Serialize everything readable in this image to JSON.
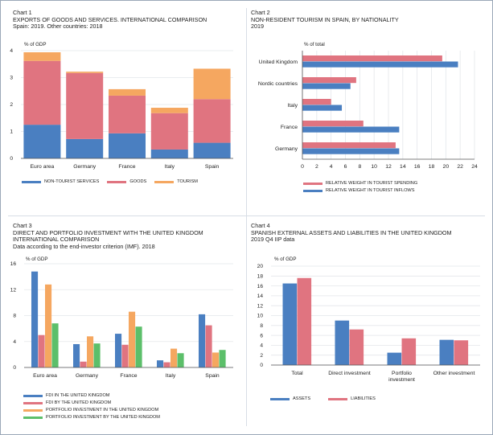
{
  "colors": {
    "blue": "#4a7fc1",
    "red": "#e07480",
    "orange": "#f5a760",
    "green": "#5cbf6a",
    "grid": "#e3e6ea",
    "axis": "#555555"
  },
  "chart1": {
    "label": "Chart 1",
    "title": "EXPORTS OF GOODS AND SERVICES. INTERNATIONAL COMPARISON",
    "subtitle": "Spain: 2019. Other countries: 2018",
    "unit": "% of GDP"
  },
  "chart2": {
    "label": "Chart 2",
    "title": "NON-RESIDENT TOURISM IN SPAIN, BY NATIONALITY",
    "subtitle": "2019",
    "unit": "% of total"
  },
  "chart3": {
    "label": "Chart 3",
    "title": "DIRECT AND PORTFOLIO INVESTMENT WITH THE UNITED KINGDOM",
    "title2": "INTERNATIONAL COMPARISON",
    "subtitle": "Data according to the end-investor criterion (IMF). 2018",
    "unit": "% of GDP"
  },
  "chart4": {
    "label": "Chart 4",
    "title": "SPANISH EXTERNAL ASSETS AND LIABILITIES IN THE UNITED KINGDOM",
    "subtitle": "2019 Q4 IIP data",
    "unit": "% of GDP"
  },
  "chart_data": [
    {
      "type": "bar",
      "stacked": true,
      "categories": [
        "Euro area",
        "Germany",
        "France",
        "Italy",
        "Spain"
      ],
      "series": [
        {
          "name": "NON-TOURIST SERVICES",
          "color": "#4a7fc1",
          "values": [
            1.25,
            0.72,
            0.93,
            0.33,
            0.58
          ]
        },
        {
          "name": "GOODS",
          "color": "#e07480",
          "values": [
            2.37,
            2.45,
            1.4,
            1.35,
            1.62
          ]
        },
        {
          "name": "TOURISM",
          "color": "#f5a760",
          "values": [
            0.32,
            0.05,
            0.24,
            0.2,
            1.13
          ]
        }
      ],
      "ylim": [
        0,
        4
      ],
      "yticks": [
        0,
        1,
        2,
        3,
        4
      ],
      "grid": true,
      "legend": "bottom"
    },
    {
      "type": "bar",
      "orientation": "horizontal",
      "categories": [
        "United Kingdom",
        "Nordic countries",
        "Italy",
        "France",
        "Germany"
      ],
      "series": [
        {
          "name": "RELATIVE WEIGHT IN TOURIST SPENDING",
          "color": "#e07480",
          "values": [
            19.5,
            7.5,
            4.0,
            8.5,
            13.0
          ]
        },
        {
          "name": "RELATIVE WEIGHT IN TOURIST INFLOWS",
          "color": "#4a7fc1",
          "values": [
            21.7,
            6.7,
            5.5,
            13.5,
            13.5
          ]
        }
      ],
      "xlim": [
        0,
        24
      ],
      "xticks": [
        0,
        2,
        4,
        6,
        8,
        10,
        12,
        14,
        16,
        18,
        20,
        22,
        24
      ],
      "grid": true,
      "legend": "bottom"
    },
    {
      "type": "bar",
      "categories": [
        "Euro area",
        "Germany",
        "France",
        "Italy",
        "Spain"
      ],
      "series": [
        {
          "name": "FDI IN THE UNITED KINGDOM",
          "color": "#4a7fc1",
          "values": [
            14.8,
            3.6,
            5.2,
            1.1,
            8.2
          ]
        },
        {
          "name": "FDI BY THE UNITED KINGDOM",
          "color": "#e07480",
          "values": [
            5.0,
            0.9,
            3.5,
            0.8,
            6.5
          ]
        },
        {
          "name": "PORTFOLIO INVESTMENT IN THE UNITED KINGDOM",
          "color": "#f5a760",
          "values": [
            12.8,
            4.8,
            8.6,
            2.9,
            2.3
          ]
        },
        {
          "name": "PORTFOLIO INVESTMENT BY THE UNITED KINGDOM",
          "color": "#5cbf6a",
          "values": [
            6.8,
            3.7,
            6.3,
            2.2,
            2.7
          ]
        }
      ],
      "ylim": [
        0,
        16
      ],
      "yticks": [
        0,
        4,
        8,
        12,
        16
      ],
      "grid": true,
      "legend": "bottom"
    },
    {
      "type": "bar",
      "categories": [
        "Total",
        "Direct investment",
        "Portfolio\ninvestment",
        "Other investment"
      ],
      "series": [
        {
          "name": "ASSETS",
          "color": "#4a7fc1",
          "values": [
            16.5,
            9.0,
            2.5,
            5.1
          ]
        },
        {
          "name": "LIABILITIES",
          "color": "#e07480",
          "values": [
            17.6,
            7.2,
            5.4,
            5.0
          ]
        }
      ],
      "ylim": [
        0,
        20
      ],
      "yticks": [
        0,
        2,
        4,
        6,
        8,
        10,
        12,
        14,
        16,
        18,
        20
      ],
      "grid": true,
      "legend": "bottom"
    }
  ]
}
